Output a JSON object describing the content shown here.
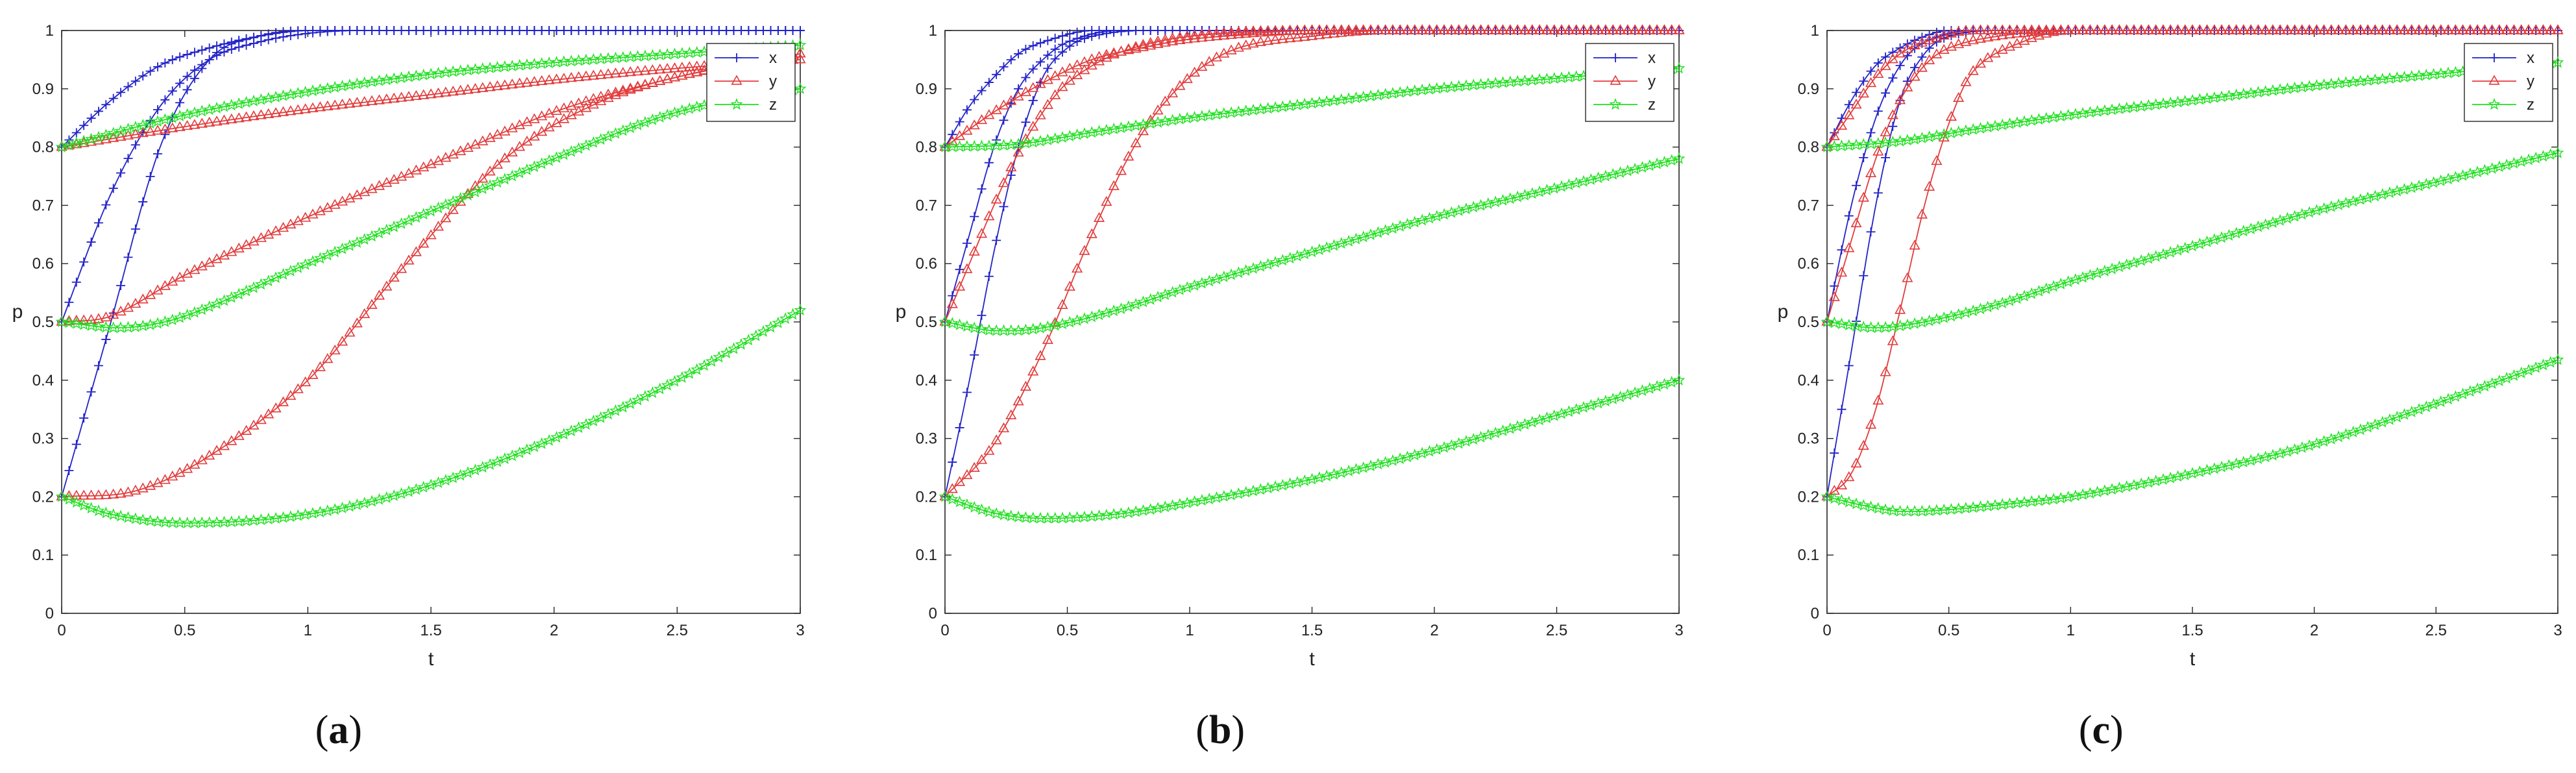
{
  "colors": {
    "x": "#2323c8",
    "y": "#e23c3c",
    "z": "#1fe01f"
  },
  "chart_data": [
    {
      "type": "line",
      "panel_label": "(a)",
      "panel_letter": "a",
      "xlabel": "t",
      "ylabel": "p",
      "xlim": [
        0,
        3
      ],
      "ylim": [
        0,
        1
      ],
      "xticks": [
        "0",
        "0.5",
        "1",
        "1.5",
        "2",
        "2.5",
        "3"
      ],
      "yticks": [
        "0",
        "0.1",
        "0.2",
        "0.3",
        "0.4",
        "0.5",
        "0.6",
        "0.7",
        "0.8",
        "0.9",
        "1"
      ],
      "legend": {
        "position": "top-right",
        "entries": [
          "x",
          "y",
          "z"
        ]
      },
      "series": [
        {
          "name": "x",
          "start": 0.2,
          "points": [
            [
              0,
              0.2
            ],
            [
              0.2,
              0.5
            ],
            [
              0.4,
              0.8
            ],
            [
              0.6,
              0.95
            ],
            [
              0.8,
              0.99
            ],
            [
              1.0,
              1.0
            ],
            [
              3.0,
              1.0
            ]
          ]
        },
        {
          "name": "x",
          "start": 0.5,
          "points": [
            [
              0,
              0.5
            ],
            [
              0.2,
              0.72
            ],
            [
              0.4,
              0.87
            ],
            [
              0.6,
              0.95
            ],
            [
              0.8,
              0.98
            ],
            [
              1.0,
              0.995
            ],
            [
              1.2,
              1.0
            ],
            [
              3.0,
              1.0
            ]
          ]
        },
        {
          "name": "x",
          "start": 0.8,
          "points": [
            [
              0,
              0.8
            ],
            [
              0.2,
              0.88
            ],
            [
              0.4,
              0.94
            ],
            [
              0.6,
              0.97
            ],
            [
              0.8,
              0.99
            ],
            [
              1.0,
              1.0
            ],
            [
              3.0,
              1.0
            ]
          ]
        },
        {
          "name": "y",
          "start": 0.2,
          "points": [
            [
              0,
              0.2
            ],
            [
              0.3,
              0.21
            ],
            [
              0.6,
              0.27
            ],
            [
              1.0,
              0.4
            ],
            [
              1.4,
              0.6
            ],
            [
              1.8,
              0.78
            ],
            [
              2.2,
              0.88
            ],
            [
              2.6,
              0.93
            ],
            [
              3.0,
              0.96
            ]
          ]
        },
        {
          "name": "y",
          "start": 0.5,
          "points": [
            [
              0,
              0.5
            ],
            [
              0.2,
              0.51
            ],
            [
              0.5,
              0.58
            ],
            [
              1.0,
              0.68
            ],
            [
              1.5,
              0.77
            ],
            [
              2.0,
              0.86
            ],
            [
              2.5,
              0.92
            ],
            [
              3.0,
              0.96
            ]
          ]
        },
        {
          "name": "y",
          "start": 0.8,
          "points": [
            [
              0,
              0.8
            ],
            [
              0.5,
              0.835
            ],
            [
              1.0,
              0.865
            ],
            [
              1.5,
              0.89
            ],
            [
              2.0,
              0.915
            ],
            [
              2.5,
              0.935
            ],
            [
              3.0,
              0.95
            ]
          ]
        },
        {
          "name": "z",
          "start": 0.2,
          "points": [
            [
              0,
              0.2
            ],
            [
              0.2,
              0.17
            ],
            [
              0.5,
              0.155
            ],
            [
              1.0,
              0.17
            ],
            [
              1.5,
              0.22
            ],
            [
              2.0,
              0.3
            ],
            [
              2.5,
              0.4
            ],
            [
              3.0,
              0.52
            ]
          ]
        },
        {
          "name": "z",
          "start": 0.5,
          "points": [
            [
              0,
              0.5
            ],
            [
              0.25,
              0.49
            ],
            [
              0.5,
              0.51
            ],
            [
              1.0,
              0.6
            ],
            [
              1.5,
              0.69
            ],
            [
              2.0,
              0.78
            ],
            [
              2.5,
              0.86
            ],
            [
              3.0,
              0.9
            ]
          ]
        },
        {
          "name": "z",
          "start": 0.8,
          "points": [
            [
              0,
              0.8
            ],
            [
              0.5,
              0.855
            ],
            [
              1.0,
              0.895
            ],
            [
              1.5,
              0.925
            ],
            [
              2.0,
              0.945
            ],
            [
              2.5,
              0.96
            ],
            [
              3.0,
              0.975
            ]
          ]
        }
      ]
    },
    {
      "type": "line",
      "panel_label": "(b)",
      "panel_letter": "b",
      "xlabel": "t",
      "ylabel": "p",
      "xlim": [
        0,
        3
      ],
      "ylim": [
        0,
        1
      ],
      "xticks": [
        "0",
        "0.5",
        "1",
        "1.5",
        "2",
        "2.5",
        "3"
      ],
      "yticks": [
        "0",
        "0.1",
        "0.2",
        "0.3",
        "0.4",
        "0.5",
        "0.6",
        "0.7",
        "0.8",
        "0.9",
        "1"
      ],
      "legend": {
        "position": "top-right",
        "entries": [
          "x",
          "y",
          "z"
        ]
      },
      "series": [
        {
          "name": "x",
          "start": 0.2,
          "points": [
            [
              0,
              0.2
            ],
            [
              0.1,
              0.4
            ],
            [
              0.2,
              0.62
            ],
            [
              0.3,
              0.8
            ],
            [
              0.4,
              0.92
            ],
            [
              0.5,
              0.97
            ],
            [
              0.6,
              0.99
            ],
            [
              0.8,
              1.0
            ],
            [
              3.0,
              1.0
            ]
          ]
        },
        {
          "name": "x",
          "start": 0.5,
          "points": [
            [
              0,
              0.5
            ],
            [
              0.1,
              0.65
            ],
            [
              0.2,
              0.8
            ],
            [
              0.3,
              0.9
            ],
            [
              0.4,
              0.95
            ],
            [
              0.5,
              0.98
            ],
            [
              0.7,
              1.0
            ],
            [
              3.0,
              1.0
            ]
          ]
        },
        {
          "name": "x",
          "start": 0.8,
          "points": [
            [
              0,
              0.8
            ],
            [
              0.1,
              0.87
            ],
            [
              0.2,
              0.92
            ],
            [
              0.3,
              0.96
            ],
            [
              0.4,
              0.98
            ],
            [
              0.6,
              1.0
            ],
            [
              3.0,
              1.0
            ]
          ]
        },
        {
          "name": "y",
          "start": 0.2,
          "points": [
            [
              0,
              0.2
            ],
            [
              0.2,
              0.29
            ],
            [
              0.4,
              0.45
            ],
            [
              0.6,
              0.65
            ],
            [
              0.8,
              0.82
            ],
            [
              1.0,
              0.92
            ],
            [
              1.2,
              0.97
            ],
            [
              1.5,
              0.99
            ],
            [
              1.8,
              1.0
            ],
            [
              3.0,
              1.0
            ]
          ]
        },
        {
          "name": "y",
          "start": 0.5,
          "points": [
            [
              0,
              0.5
            ],
            [
              0.1,
              0.6
            ],
            [
              0.2,
              0.7
            ],
            [
              0.3,
              0.79
            ],
            [
              0.4,
              0.86
            ],
            [
              0.5,
              0.91
            ],
            [
              0.7,
              0.96
            ],
            [
              1.0,
              0.99
            ],
            [
              1.5,
              1.0
            ],
            [
              3.0,
              1.0
            ]
          ]
        },
        {
          "name": "y",
          "start": 0.8,
          "points": [
            [
              0,
              0.8
            ],
            [
              0.2,
              0.86
            ],
            [
              0.4,
              0.91
            ],
            [
              0.6,
              0.95
            ],
            [
              0.8,
              0.97
            ],
            [
              1.0,
              0.985
            ],
            [
              1.5,
              1.0
            ],
            [
              3.0,
              1.0
            ]
          ]
        },
        {
          "name": "z",
          "start": 0.2,
          "points": [
            [
              0,
              0.2
            ],
            [
              0.2,
              0.172
            ],
            [
              0.4,
              0.163
            ],
            [
              0.7,
              0.17
            ],
            [
              1.0,
              0.19
            ],
            [
              1.5,
              0.23
            ],
            [
              2.0,
              0.28
            ],
            [
              2.5,
              0.34
            ],
            [
              3.0,
              0.4
            ]
          ]
        },
        {
          "name": "z",
          "start": 0.5,
          "points": [
            [
              0,
              0.5
            ],
            [
              0.2,
              0.485
            ],
            [
              0.4,
              0.49
            ],
            [
              0.7,
              0.52
            ],
            [
              1.0,
              0.56
            ],
            [
              1.5,
              0.62
            ],
            [
              2.0,
              0.68
            ],
            [
              2.5,
              0.73
            ],
            [
              3.0,
              0.78
            ]
          ]
        },
        {
          "name": "z",
          "start": 0.8,
          "points": [
            [
              0,
              0.8
            ],
            [
              0.3,
              0.805
            ],
            [
              0.6,
              0.825
            ],
            [
              1.0,
              0.85
            ],
            [
              1.5,
              0.875
            ],
            [
              2.0,
              0.9
            ],
            [
              2.5,
              0.918
            ],
            [
              3.0,
              0.935
            ]
          ]
        }
      ]
    },
    {
      "type": "line",
      "panel_label": "(c)",
      "panel_letter": "c",
      "xlabel": "t",
      "ylabel": "p",
      "xlim": [
        0,
        3
      ],
      "ylim": [
        0,
        1
      ],
      "xticks": [
        "0",
        "0.5",
        "1",
        "1.5",
        "2",
        "2.5",
        "3"
      ],
      "yticks": [
        "0",
        "0.1",
        "0.2",
        "0.3",
        "0.4",
        "0.5",
        "0.6",
        "0.7",
        "0.8",
        "0.9",
        "1"
      ],
      "legend": {
        "position": "top-right",
        "entries": [
          "x",
          "y",
          "z"
        ]
      },
      "series": [
        {
          "name": "x",
          "start": 0.2,
          "points": [
            [
              0,
              0.2
            ],
            [
              0.1,
              0.45
            ],
            [
              0.2,
              0.7
            ],
            [
              0.3,
              0.88
            ],
            [
              0.4,
              0.96
            ],
            [
              0.5,
              0.99
            ],
            [
              0.7,
              1.0
            ],
            [
              3.0,
              1.0
            ]
          ]
        },
        {
          "name": "x",
          "start": 0.5,
          "points": [
            [
              0,
              0.5
            ],
            [
              0.1,
              0.7
            ],
            [
              0.2,
              0.85
            ],
            [
              0.3,
              0.94
            ],
            [
              0.4,
              0.98
            ],
            [
              0.6,
              1.0
            ],
            [
              3.0,
              1.0
            ]
          ]
        },
        {
          "name": "x",
          "start": 0.8,
          "points": [
            [
              0,
              0.8
            ],
            [
              0.1,
              0.88
            ],
            [
              0.2,
              0.94
            ],
            [
              0.3,
              0.97
            ],
            [
              0.4,
              0.99
            ],
            [
              0.5,
              1.0
            ],
            [
              3.0,
              1.0
            ]
          ]
        },
        {
          "name": "y",
          "start": 0.2,
          "points": [
            [
              0,
              0.2
            ],
            [
              0.1,
              0.24
            ],
            [
              0.2,
              0.35
            ],
            [
              0.3,
              0.52
            ],
            [
              0.4,
              0.7
            ],
            [
              0.5,
              0.84
            ],
            [
              0.6,
              0.93
            ],
            [
              0.8,
              0.98
            ],
            [
              1.0,
              1.0
            ],
            [
              3.0,
              1.0
            ]
          ]
        },
        {
          "name": "y",
          "start": 0.5,
          "points": [
            [
              0,
              0.5
            ],
            [
              0.1,
              0.64
            ],
            [
              0.2,
              0.78
            ],
            [
              0.3,
              0.88
            ],
            [
              0.4,
              0.94
            ],
            [
              0.5,
              0.97
            ],
            [
              0.7,
              0.99
            ],
            [
              1.0,
              1.0
            ],
            [
              3.0,
              1.0
            ]
          ]
        },
        {
          "name": "y",
          "start": 0.8,
          "points": [
            [
              0,
              0.8
            ],
            [
              0.1,
              0.86
            ],
            [
              0.2,
              0.92
            ],
            [
              0.3,
              0.96
            ],
            [
              0.4,
              0.98
            ],
            [
              0.6,
              1.0
            ],
            [
              3.0,
              1.0
            ]
          ]
        },
        {
          "name": "z",
          "start": 0.2,
          "points": [
            [
              0,
              0.2
            ],
            [
              0.15,
              0.185
            ],
            [
              0.3,
              0.175
            ],
            [
              0.5,
              0.178
            ],
            [
              0.8,
              0.19
            ],
            [
              1.0,
              0.2
            ],
            [
              1.5,
              0.24
            ],
            [
              2.0,
              0.29
            ],
            [
              2.5,
              0.36
            ],
            [
              3.0,
              0.435
            ]
          ]
        },
        {
          "name": "z",
          "start": 0.5,
          "points": [
            [
              0,
              0.5
            ],
            [
              0.2,
              0.49
            ],
            [
              0.4,
              0.5
            ],
            [
              0.7,
              0.53
            ],
            [
              1.0,
              0.57
            ],
            [
              1.5,
              0.63
            ],
            [
              2.0,
              0.69
            ],
            [
              2.5,
              0.74
            ],
            [
              3.0,
              0.79
            ]
          ]
        },
        {
          "name": "z",
          "start": 0.8,
          "points": [
            [
              0,
              0.8
            ],
            [
              0.3,
              0.81
            ],
            [
              0.6,
              0.83
            ],
            [
              1.0,
              0.855
            ],
            [
              1.5,
              0.88
            ],
            [
              2.0,
              0.905
            ],
            [
              2.5,
              0.925
            ],
            [
              3.0,
              0.945
            ]
          ]
        }
      ]
    }
  ]
}
